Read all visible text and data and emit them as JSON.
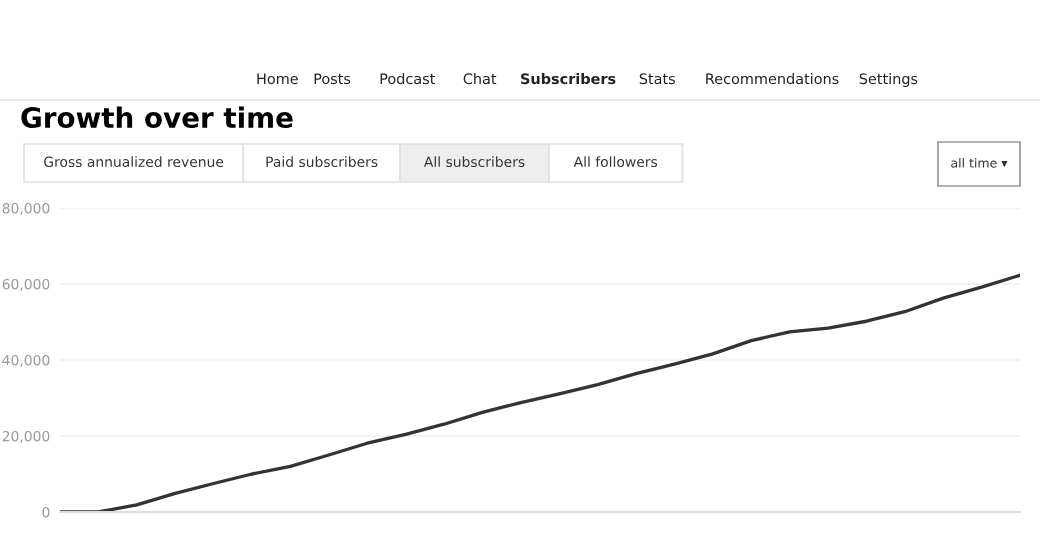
{
  "chart_data": {
    "type": "line",
    "title": "Growth over time",
    "annotations": [
      "Home",
      "Posts",
      "Podcast",
      "Chat",
      "Subscribers",
      "Stats",
      "Recommendations",
      "Settings",
      "Gross annualized revenue",
      "Paid subscribers",
      "All subscribers",
      "All followers",
      "all time ▾"
    ],
    "categories": [
      null,
      null,
      null,
      null,
      null,
      null,
      null,
      null,
      null,
      null,
      null,
      null,
      null,
      null,
      null,
      null,
      null,
      null,
      null,
      null,
      null,
      null,
      null,
      null,
      null,
      null
    ],
    "series": [
      {
        "color": "#333333",
        "values": [
          0,
          0,
          1900,
          4900,
          7500,
          10000,
          12000,
          15000,
          18100,
          20400,
          23100,
          26200,
          28800,
          31100,
          33500,
          36400,
          38900,
          41600,
          45100,
          47400,
          48400,
          50200,
          52700,
          56300,
          59200,
          62300
        ]
      }
    ],
    "ylim": [
      0,
      80000
    ],
    "yticks": [
      {
        "value": 0,
        "label": "0"
      },
      {
        "value": 20000,
        "label": "20,000"
      },
      {
        "value": 40000,
        "label": "40,000"
      },
      {
        "value": 60000,
        "label": "60,000"
      },
      {
        "value": 80000,
        "label": "80,000"
      }
    ],
    "grid": "y",
    "marker": "none",
    "line_style": "solid"
  }
}
